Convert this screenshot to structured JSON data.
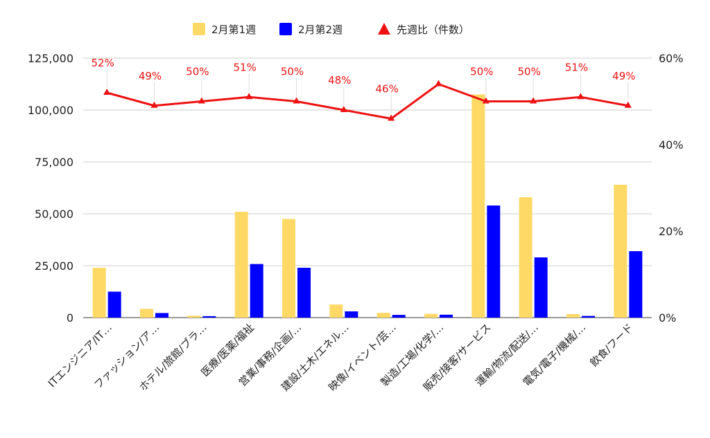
{
  "chart_data": {
    "type": "bar",
    "categories": [
      "ITエンジニア/IT…",
      "ファッション/ア…",
      "ホテル/旅館/ブラ…",
      "医療/医薬/福祉",
      "営業/事務/企画/…",
      "建設/土木/エネル…",
      "映像/イベント/芸…",
      "製造/工場/化学/…",
      "販売/接客/サービス",
      "運輸/物流/配送/…",
      "電気/電子/機械/…",
      "飲食/フード"
    ],
    "series": [
      {
        "name": "2月第1週",
        "color": "#ffd966",
        "axis": "left",
        "values": [
          24000,
          4200,
          900,
          51000,
          47500,
          6300,
          2300,
          1800,
          107500,
          58000,
          1700,
          64000
        ]
      },
      {
        "name": "2月第2週",
        "color": "#0000ff",
        "axis": "left",
        "values": [
          12500,
          2200,
          700,
          25800,
          24000,
          3000,
          1300,
          1400,
          54000,
          29000,
          800,
          32000
        ]
      },
      {
        "name": "先週比（件数）",
        "color": "#ee1111",
        "type": "line",
        "marker": "triangle",
        "axis": "right",
        "values": [
          52,
          49,
          50,
          51,
          50,
          48,
          46,
          54,
          50,
          50,
          51,
          49
        ],
        "labels": [
          "52%",
          "49%",
          "50%",
          "51%",
          "50%",
          "48%",
          "46%",
          "",
          "50%",
          "50%",
          "51%",
          "49%"
        ]
      }
    ],
    "left_axis": {
      "ylim": [
        0,
        125000
      ],
      "ticks": [
        "0",
        "25,000",
        "50,000",
        "75,000",
        "100,000",
        "125,000"
      ]
    },
    "right_axis": {
      "ylim": [
        0,
        60
      ],
      "ticks": [
        "0%",
        "20%",
        "40%",
        "60%"
      ]
    },
    "legend_position": "top-center",
    "grid": true
  }
}
